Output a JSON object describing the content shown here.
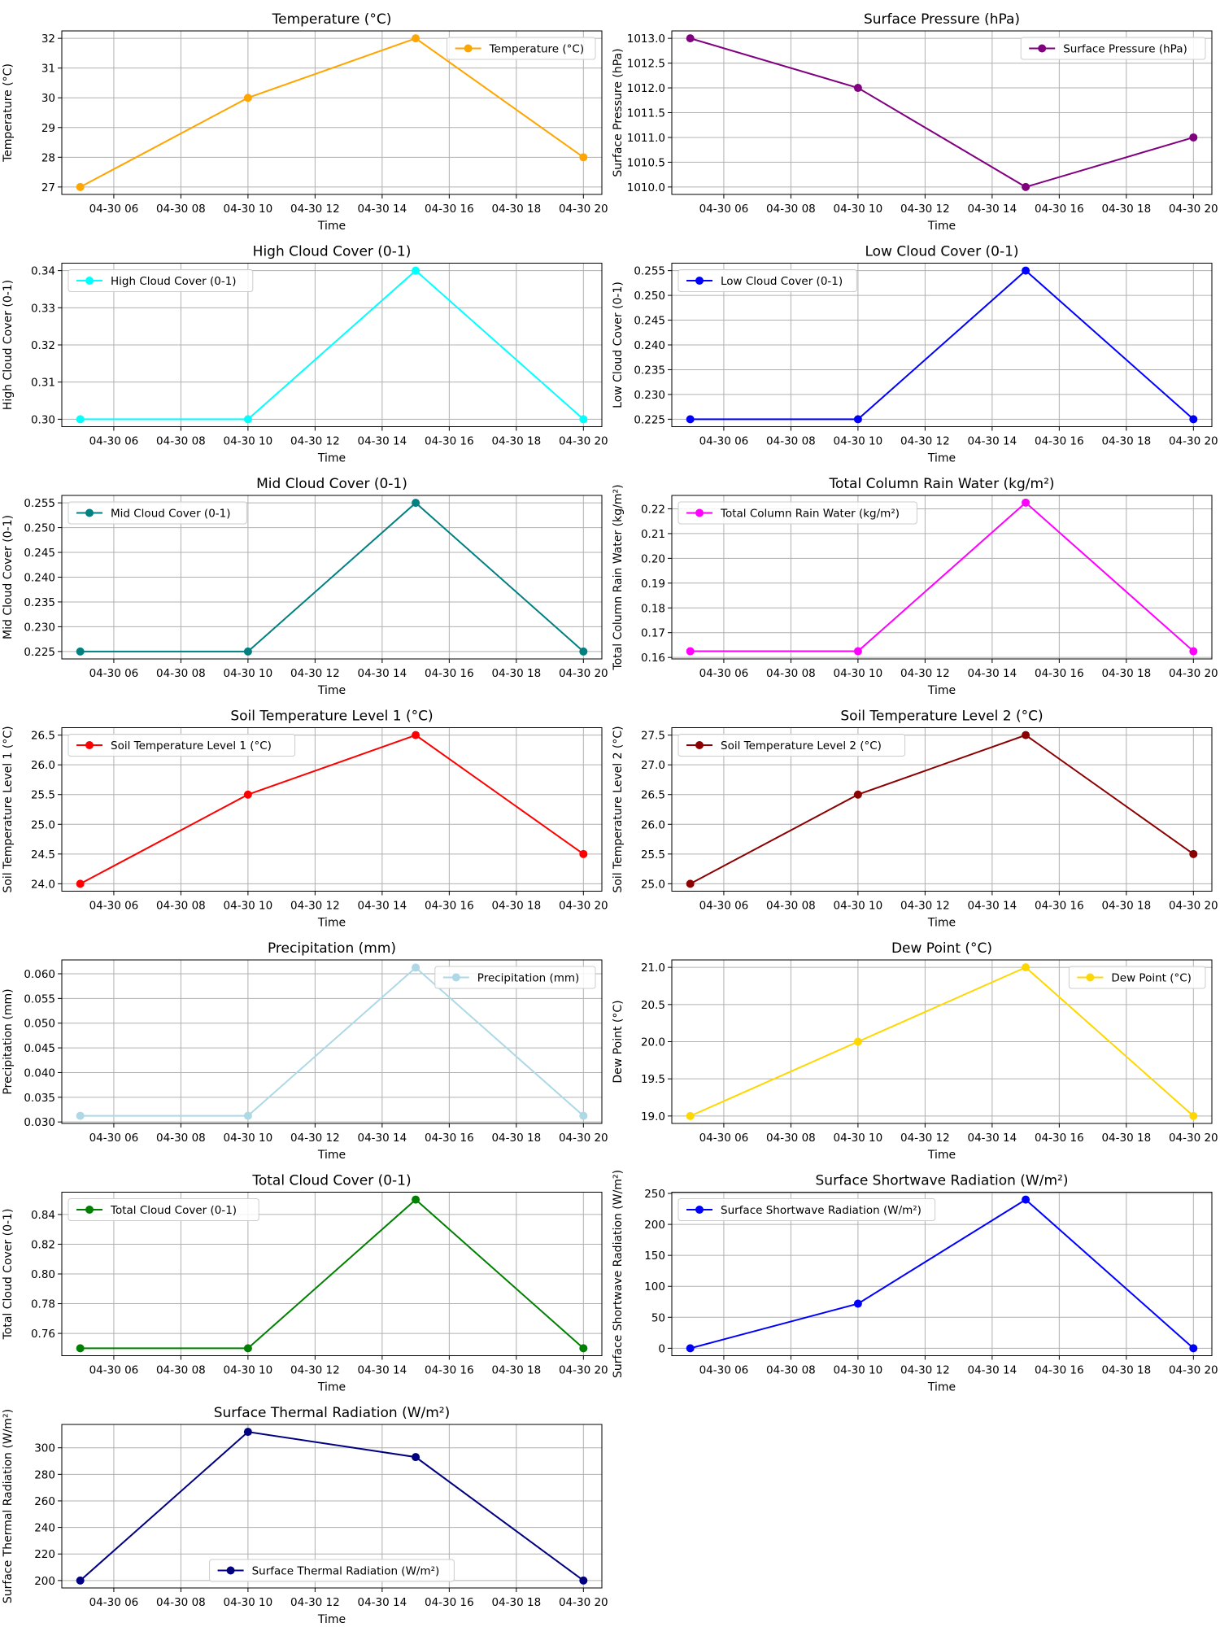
{
  "figure": {
    "background": "#ffffff"
  },
  "chart_data": [
    {
      "type": "line",
      "title": "Temperature (°C)",
      "xlabel": "Time",
      "ylabel": "Temperature (°C)",
      "x": [
        "04-30 05",
        "04-30 10",
        "04-30 15",
        "04-30 20"
      ],
      "xticks": [
        "04-30 06",
        "04-30 08",
        "04-30 10",
        "04-30 12",
        "04-30 14",
        "04-30 16",
        "04-30 18",
        "04-30 20"
      ],
      "yticks": [
        "27",
        "28",
        "29",
        "30",
        "31",
        "32"
      ],
      "ylim": [
        26.75,
        32.25
      ],
      "series": [
        {
          "name": "Temperature (°C)",
          "values": [
            27,
            30,
            32,
            28
          ],
          "color": "#FFA500"
        }
      ],
      "legend": "top-right",
      "grid": true
    },
    {
      "type": "line",
      "title": "Surface Pressure (hPa)",
      "xlabel": "Time",
      "ylabel": "Surface Pressure (hPa)",
      "x": [
        "04-30 05",
        "04-30 10",
        "04-30 15",
        "04-30 20"
      ],
      "xticks": [
        "04-30 06",
        "04-30 08",
        "04-30 10",
        "04-30 12",
        "04-30 14",
        "04-30 16",
        "04-30 18",
        "04-30 20"
      ],
      "yticks": [
        "1010.0",
        "1010.5",
        "1011.0",
        "1011.5",
        "1012.0",
        "1012.5",
        "1013.0"
      ],
      "ylim": [
        1009.85,
        1013.15
      ],
      "series": [
        {
          "name": "Surface Pressure (hPa)",
          "values": [
            1013,
            1012,
            1010,
            1011
          ],
          "color": "#800080"
        }
      ],
      "legend": "top-right",
      "grid": true
    },
    {
      "type": "line",
      "title": "High Cloud Cover (0-1)",
      "xlabel": "Time",
      "ylabel": "High Cloud Cover (0-1)",
      "x": [
        "04-30 05",
        "04-30 10",
        "04-30 15",
        "04-30 20"
      ],
      "xticks": [
        "04-30 06",
        "04-30 08",
        "04-30 10",
        "04-30 12",
        "04-30 14",
        "04-30 16",
        "04-30 18",
        "04-30 20"
      ],
      "yticks": [
        "0.30",
        "0.31",
        "0.32",
        "0.33",
        "0.34"
      ],
      "ylim": [
        0.298,
        0.342
      ],
      "series": [
        {
          "name": "High Cloud Cover (0-1)",
          "values": [
            0.3,
            0.3,
            0.34,
            0.3
          ],
          "color": "#00FFFF"
        }
      ],
      "legend": "top-left",
      "grid": true
    },
    {
      "type": "line",
      "title": "Low Cloud Cover (0-1)",
      "xlabel": "Time",
      "ylabel": "Low Cloud Cover (0-1)",
      "x": [
        "04-30 05",
        "04-30 10",
        "04-30 15",
        "04-30 20"
      ],
      "xticks": [
        "04-30 06",
        "04-30 08",
        "04-30 10",
        "04-30 12",
        "04-30 14",
        "04-30 16",
        "04-30 18",
        "04-30 20"
      ],
      "yticks": [
        "0.225",
        "0.230",
        "0.235",
        "0.240",
        "0.245",
        "0.250",
        "0.255"
      ],
      "ylim": [
        0.2235,
        0.2565
      ],
      "series": [
        {
          "name": "Low Cloud Cover (0-1)",
          "values": [
            0.225,
            0.225,
            0.255,
            0.225
          ],
          "color": "#0000FF"
        }
      ],
      "legend": "top-left",
      "grid": true
    },
    {
      "type": "line",
      "title": "Mid Cloud Cover (0-1)",
      "xlabel": "Time",
      "ylabel": "Mid Cloud Cover (0-1)",
      "x": [
        "04-30 05",
        "04-30 10",
        "04-30 15",
        "04-30 20"
      ],
      "xticks": [
        "04-30 06",
        "04-30 08",
        "04-30 10",
        "04-30 12",
        "04-30 14",
        "04-30 16",
        "04-30 18",
        "04-30 20"
      ],
      "yticks": [
        "0.225",
        "0.230",
        "0.235",
        "0.240",
        "0.245",
        "0.250",
        "0.255"
      ],
      "ylim": [
        0.2235,
        0.2565
      ],
      "series": [
        {
          "name": "Mid Cloud Cover (0-1)",
          "values": [
            0.225,
            0.225,
            0.255,
            0.225
          ],
          "color": "#008080"
        }
      ],
      "legend": "top-left",
      "grid": true
    },
    {
      "type": "line",
      "title": "Total Column Rain Water (kg/m²)",
      "xlabel": "Time",
      "ylabel": "Total Column Rain Water (kg/m²)",
      "x": [
        "04-30 05",
        "04-30 10",
        "04-30 15",
        "04-30 20"
      ],
      "xticks": [
        "04-30 06",
        "04-30 08",
        "04-30 10",
        "04-30 12",
        "04-30 14",
        "04-30 16",
        "04-30 18",
        "04-30 20"
      ],
      "yticks": [
        "0.16",
        "0.17",
        "0.18",
        "0.19",
        "0.20",
        "0.21",
        "0.22"
      ],
      "ylim": [
        0.1594,
        0.2254
      ],
      "series": [
        {
          "name": "Total Column Rain Water (kg/m²)",
          "values": [
            0.1625,
            0.1625,
            0.2225,
            0.1625
          ],
          "color": "#FF00FF"
        }
      ],
      "legend": "top-left",
      "grid": true
    },
    {
      "type": "line",
      "title": "Soil Temperature Level 1 (°C)",
      "xlabel": "Time",
      "ylabel": "Soil Temperature Level 1 (°C)",
      "x": [
        "04-30 05",
        "04-30 10",
        "04-30 15",
        "04-30 20"
      ],
      "xticks": [
        "04-30 06",
        "04-30 08",
        "04-30 10",
        "04-30 12",
        "04-30 14",
        "04-30 16",
        "04-30 18",
        "04-30 20"
      ],
      "yticks": [
        "24.0",
        "24.5",
        "25.0",
        "25.5",
        "26.0",
        "26.5"
      ],
      "ylim": [
        23.875,
        26.625
      ],
      "series": [
        {
          "name": "Soil Temperature Level 1 (°C)",
          "values": [
            24.0,
            25.5,
            26.5,
            24.5
          ],
          "color": "#FF0000"
        }
      ],
      "legend": "top-left",
      "grid": true
    },
    {
      "type": "line",
      "title": "Soil Temperature Level 2 (°C)",
      "xlabel": "Time",
      "ylabel": "Soil Temperature Level 2 (°C)",
      "x": [
        "04-30 05",
        "04-30 10",
        "04-30 15",
        "04-30 20"
      ],
      "xticks": [
        "04-30 06",
        "04-30 08",
        "04-30 10",
        "04-30 12",
        "04-30 14",
        "04-30 16",
        "04-30 18",
        "04-30 20"
      ],
      "yticks": [
        "25.0",
        "25.5",
        "26.0",
        "26.5",
        "27.0",
        "27.5"
      ],
      "ylim": [
        24.875,
        27.625
      ],
      "series": [
        {
          "name": "Soil Temperature Level 2 (°C)",
          "values": [
            25.0,
            26.5,
            27.5,
            25.5
          ],
          "color": "#8B0000"
        }
      ],
      "legend": "top-left",
      "grid": true
    },
    {
      "type": "line",
      "title": "Precipitation (mm)",
      "xlabel": "Time",
      "ylabel": "Precipitation (mm)",
      "x": [
        "04-30 05",
        "04-30 10",
        "04-30 15",
        "04-30 20"
      ],
      "xticks": [
        "04-30 06",
        "04-30 08",
        "04-30 10",
        "04-30 12",
        "04-30 14",
        "04-30 16",
        "04-30 18",
        "04-30 20"
      ],
      "yticks": [
        "0.030",
        "0.035",
        "0.040",
        "0.045",
        "0.050",
        "0.055",
        "0.060"
      ],
      "ylim": [
        0.0297,
        0.0628
      ],
      "series": [
        {
          "name": "Precipitation (mm)",
          "values": [
            0.03125,
            0.03125,
            0.06125,
            0.03125
          ],
          "color": "#ADD8E6"
        }
      ],
      "legend": "top-right",
      "grid": true
    },
    {
      "type": "line",
      "title": "Dew Point (°C)",
      "xlabel": "Time",
      "ylabel": "Dew Point (°C)",
      "x": [
        "04-30 05",
        "04-30 10",
        "04-30 15",
        "04-30 20"
      ],
      "xticks": [
        "04-30 06",
        "04-30 08",
        "04-30 10",
        "04-30 12",
        "04-30 14",
        "04-30 16",
        "04-30 18",
        "04-30 20"
      ],
      "yticks": [
        "19.0",
        "19.5",
        "20.0",
        "20.5",
        "21.0"
      ],
      "ylim": [
        18.9,
        21.1
      ],
      "series": [
        {
          "name": "Dew Point (°C)",
          "values": [
            19.0,
            20.0,
            21.0,
            19.0
          ],
          "color": "#FFD700"
        }
      ],
      "legend": "top-right",
      "grid": true
    },
    {
      "type": "line",
      "title": "Total Cloud Cover (0-1)",
      "xlabel": "Time",
      "ylabel": "Total Cloud Cover (0-1)",
      "x": [
        "04-30 05",
        "04-30 10",
        "04-30 15",
        "04-30 20"
      ],
      "xticks": [
        "04-30 06",
        "04-30 08",
        "04-30 10",
        "04-30 12",
        "04-30 14",
        "04-30 16",
        "04-30 18",
        "04-30 20"
      ],
      "yticks": [
        "0.76",
        "0.78",
        "0.80",
        "0.82",
        "0.84"
      ],
      "ylim": [
        0.745,
        0.855
      ],
      "series": [
        {
          "name": "Total Cloud Cover (0-1)",
          "values": [
            0.75,
            0.75,
            0.85,
            0.75
          ],
          "color": "#008000"
        }
      ],
      "legend": "top-left",
      "grid": true
    },
    {
      "type": "line",
      "title": "Surface Shortwave Radiation (W/m²)",
      "xlabel": "Time",
      "ylabel": "Surface Shortwave Radiation (W/m²)",
      "x": [
        "04-30 05",
        "04-30 10",
        "04-30 15",
        "04-30 20"
      ],
      "xticks": [
        "04-30 06",
        "04-30 08",
        "04-30 10",
        "04-30 12",
        "04-30 14",
        "04-30 16",
        "04-30 18",
        "04-30 20"
      ],
      "yticks": [
        "0",
        "50",
        "100",
        "150",
        "200",
        "250"
      ],
      "ylim": [
        -12,
        252
      ],
      "series": [
        {
          "name": "Surface Shortwave Radiation (W/m²)",
          "values": [
            0,
            72,
            240,
            0
          ],
          "color": "#0000FF"
        }
      ],
      "legend": "top-left",
      "grid": true
    },
    {
      "type": "line",
      "title": "Surface Thermal Radiation (W/m²)",
      "xlabel": "Time",
      "ylabel": "Surface Thermal Radiation (W/m²)",
      "x": [
        "04-30 05",
        "04-30 10",
        "04-30 15",
        "04-30 20"
      ],
      "xticks": [
        "04-30 06",
        "04-30 08",
        "04-30 10",
        "04-30 12",
        "04-30 14",
        "04-30 16",
        "04-30 18",
        "04-30 20"
      ],
      "yticks": [
        "200",
        "220",
        "240",
        "260",
        "280",
        "300"
      ],
      "ylim": [
        194.4,
        317.6
      ],
      "series": [
        {
          "name": "Surface Thermal Radiation (W/m²)",
          "values": [
            200,
            312,
            293,
            200
          ],
          "color": "#000080"
        }
      ],
      "legend": "bottom-center",
      "grid": true
    }
  ]
}
